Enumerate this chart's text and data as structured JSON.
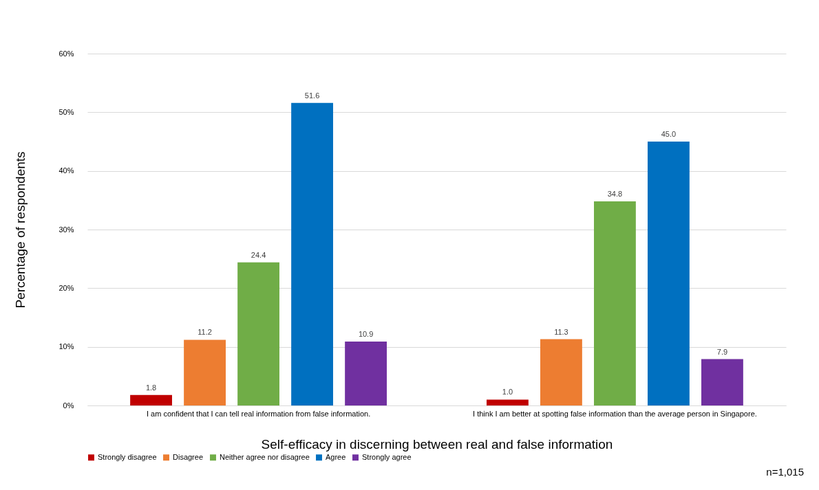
{
  "chart_data": {
    "type": "bar",
    "xlabel": "Self-efficacy in discerning between real and false information",
    "ylabel": "Percentage of respondents",
    "categories": [
      "I am confident that I can tell real information from false information.",
      "I think I am better at spotting false information than the average person in Singapore."
    ],
    "series": [
      {
        "name": "Strongly disagree",
        "color": "#c00000",
        "values": [
          1.8,
          1.0
        ]
      },
      {
        "name": "Disagree",
        "color": "#ed7d31",
        "values": [
          11.2,
          11.3
        ]
      },
      {
        "name": "Neither agree nor disagree",
        "color": "#70ad47",
        "values": [
          24.4,
          34.8
        ]
      },
      {
        "name": "Agree",
        "color": "#0070c0",
        "values": [
          51.6,
          45.0
        ]
      },
      {
        "name": "Strongly agree",
        "color": "#7030a0",
        "values": [
          10.9,
          7.9
        ]
      }
    ],
    "ylim": [
      0,
      60
    ],
    "yticks": [
      {
        "value": 0,
        "label": "0%"
      },
      {
        "value": 10,
        "label": "10%"
      },
      {
        "value": 20,
        "label": "20%"
      },
      {
        "value": 30,
        "label": "30%"
      },
      {
        "value": 40,
        "label": "40%"
      },
      {
        "value": 50,
        "label": "50%"
      },
      {
        "value": 60,
        "label": "60%"
      }
    ],
    "value_labels": [
      [
        "1.8",
        "1.0"
      ],
      [
        "11.2",
        "11.3"
      ],
      [
        "24.4",
        "34.8"
      ],
      [
        "51.6",
        "45.0"
      ],
      [
        "10.9",
        "7.9"
      ]
    ],
    "grid": "y",
    "legend": "bottom",
    "annotations": [
      "n=1,015"
    ]
  }
}
